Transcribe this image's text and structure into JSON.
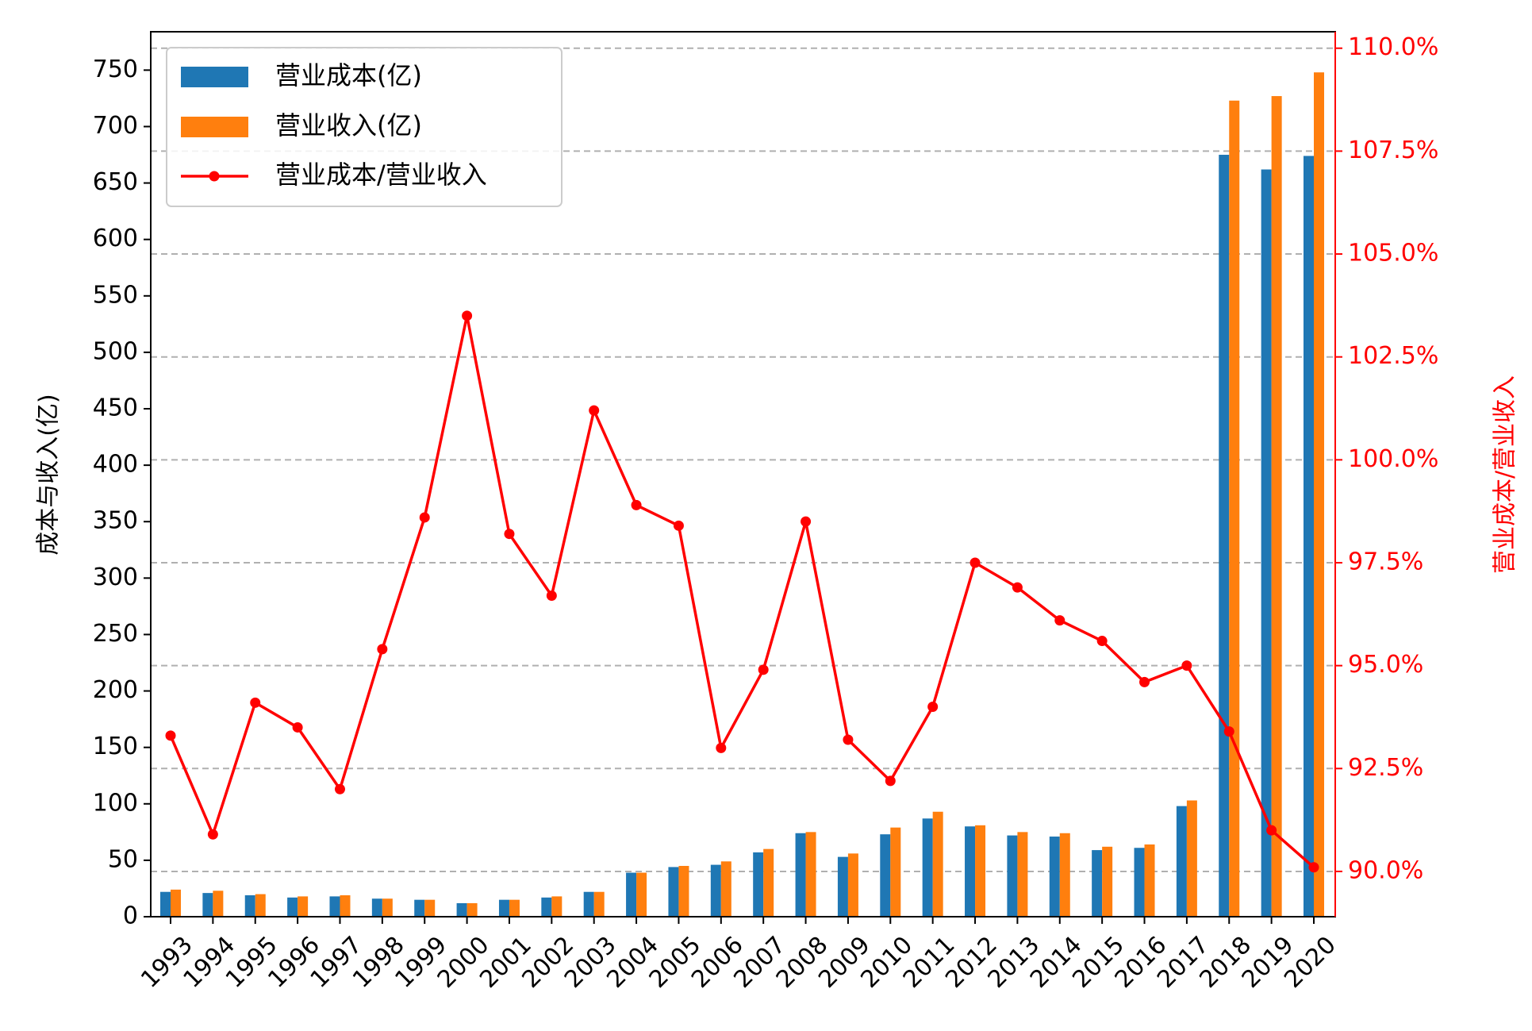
{
  "chart_data": {
    "type": "bar",
    "categories": [
      "1993",
      "1994",
      "1995",
      "1996",
      "1997",
      "1998",
      "1999",
      "2000",
      "2001",
      "2002",
      "2003",
      "2004",
      "2005",
      "2006",
      "2007",
      "2008",
      "2009",
      "2010",
      "2011",
      "2012",
      "2013",
      "2014",
      "2015",
      "2016",
      "2017",
      "2018",
      "2019",
      "2020"
    ],
    "series": [
      {
        "name": "营业成本(亿)",
        "type": "bar",
        "axis": "left",
        "color": "#1f77b4",
        "values": [
          22,
          21,
          19,
          17,
          18,
          16,
          15,
          12,
          15,
          17,
          22,
          39,
          44,
          46,
          57,
          74,
          53,
          73,
          87,
          80,
          72,
          71,
          59,
          61,
          98,
          675,
          662,
          674
        ]
      },
      {
        "name": "营业收入(亿)",
        "type": "bar",
        "axis": "left",
        "color": "#ff7f0e",
        "values": [
          24,
          23,
          20,
          18,
          19,
          16,
          15,
          12,
          15,
          18,
          22,
          39,
          45,
          49,
          60,
          75,
          56,
          79,
          93,
          81,
          75,
          74,
          62,
          64,
          103,
          723,
          727,
          748
        ]
      },
      {
        "name": "营业成本/营业收入",
        "type": "line",
        "axis": "right",
        "color": "#ff0000",
        "values": [
          93.3,
          90.9,
          94.1,
          93.5,
          92.0,
          95.4,
          98.6,
          103.5,
          98.2,
          96.7,
          101.2,
          98.9,
          98.4,
          93.0,
          94.9,
          98.5,
          93.2,
          92.2,
          94.0,
          97.5,
          96.9,
          96.1,
          95.6,
          94.6,
          95.0,
          93.4,
          91.0,
          90.1
        ]
      }
    ],
    "ylabel": "成本与收入(亿)",
    "ylabel_right": "营业成本/营业收入",
    "ylim": [
      0,
      784
    ],
    "ylim_right": [
      88.9,
      110.4
    ],
    "yticks": [
      0,
      50,
      100,
      150,
      200,
      250,
      300,
      350,
      400,
      450,
      500,
      550,
      600,
      650,
      700,
      750
    ],
    "yticks_right": [
      90.0,
      92.5,
      95.0,
      97.5,
      100.0,
      102.5,
      105.0,
      107.5,
      110.0
    ],
    "yticks_right_labels": [
      "90.0%",
      "92.5%",
      "95.0%",
      "97.5%",
      "100.0%",
      "102.5%",
      "105.0%",
      "107.5%",
      "110.0%"
    ],
    "grid": "dashed horizontal on right axis",
    "legend_position": "top-left",
    "right_axis_color": "#ff0000"
  }
}
